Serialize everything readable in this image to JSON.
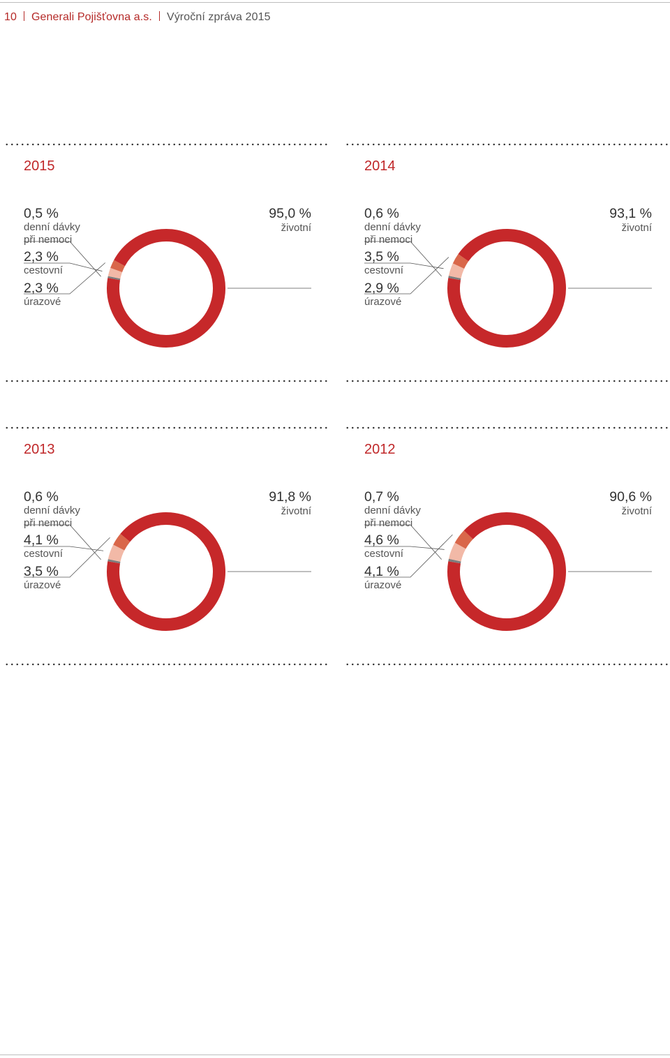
{
  "header": {
    "page_number": "10",
    "company": "Generali Pojišťovna a.s.",
    "document": "Výroční zpráva 2015"
  },
  "colors": {
    "zivotni": "#c6282a",
    "cestovni": "#f2b9a7",
    "urazove": "#d9674a",
    "denni_davky": "#7d7d7d",
    "year": "#c0282a"
  },
  "chart_data": [
    {
      "type": "pie",
      "year": "2015",
      "categories": [
        "denní dávky\npři nemoci",
        "cestovní",
        "úrazové",
        "životní"
      ],
      "values": [
        0.5,
        2.3,
        2.3,
        95.0
      ],
      "labels": [
        "0,5 %",
        "2,3 %",
        "2,3 %",
        "95,0 %"
      ]
    },
    {
      "type": "pie",
      "year": "2014",
      "categories": [
        "denní dávky\npři nemoci",
        "cestovní",
        "úrazové",
        "životní"
      ],
      "values": [
        0.6,
        3.5,
        2.9,
        93.1
      ],
      "labels": [
        "0,6 %",
        "3,5 %",
        "2,9 %",
        "93,1 %"
      ]
    },
    {
      "type": "pie",
      "year": "2013",
      "categories": [
        "denní dávky\npři nemoci",
        "cestovní",
        "úrazové",
        "životní"
      ],
      "values": [
        0.6,
        4.1,
        3.5,
        91.8
      ],
      "labels": [
        "0,6 %",
        "4,1 %",
        "3,5 %",
        "91,8 %"
      ]
    },
    {
      "type": "pie",
      "year": "2012",
      "categories": [
        "denní dávky\npři nemoci",
        "cestovní",
        "úrazové",
        "životní"
      ],
      "values": [
        0.7,
        4.6,
        4.1,
        90.6
      ],
      "labels": [
        "0,7 %",
        "4,6 %",
        "4,1 %",
        "90,6 %"
      ]
    }
  ]
}
